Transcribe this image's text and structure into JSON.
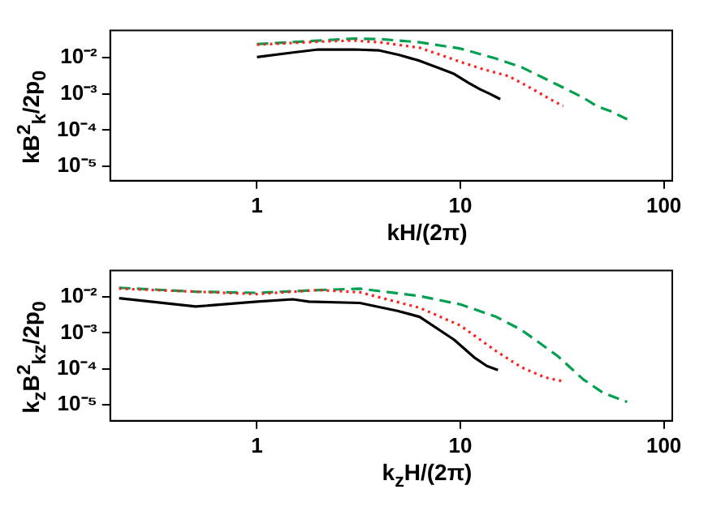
{
  "chart_data": [
    {
      "type": "line",
      "xlabel": "kH/(2π)",
      "ylabel": "kB$^{2}$$_{k}$/2p$_{0}$",
      "log": "xy",
      "grid": false,
      "legend": false,
      "marker": "none",
      "xlim": [
        0.19,
        110
      ],
      "xticks": [
        1,
        10,
        100
      ],
      "ylim": [
        4e-06,
        0.057
      ],
      "yticks": [
        {
          "value": 0.01,
          "label": "10⁻²"
        },
        {
          "value": 0.001,
          "label": "10⁻³"
        },
        {
          "value": 0.0001,
          "label": "10⁻⁴"
        },
        {
          "value": 1e-05,
          "label": "10⁻⁵"
        }
      ],
      "series": [
        {
          "color": "#000000",
          "line_style": "solid",
          "x": [
            1,
            1.5,
            2,
            3,
            4,
            5,
            6.3,
            8,
            9.3,
            11,
            12.5,
            14,
            15.7
          ],
          "values": [
            0.0105,
            0.014,
            0.017,
            0.017,
            0.016,
            0.012,
            0.0083,
            0.005,
            0.0036,
            0.002,
            0.00135,
            0.001,
            0.00072
          ]
        },
        {
          "color": "#ff2020",
          "line_style": "dotted",
          "x": [
            1,
            2,
            3,
            4,
            6.3,
            8,
            10.4,
            13,
            17.3,
            22,
            26.7,
            32
          ],
          "values": [
            0.023,
            0.028,
            0.03,
            0.027,
            0.019,
            0.012,
            0.0072,
            0.0048,
            0.0031,
            0.0015,
            0.0008,
            0.00046
          ]
        },
        {
          "color": "#00a050",
          "line_style": "dashed",
          "x": [
            1,
            2,
            3,
            4,
            6.3,
            10,
            15,
            20,
            30,
            40,
            47,
            55,
            66
          ],
          "values": [
            0.024,
            0.03,
            0.034,
            0.033,
            0.027,
            0.018,
            0.0095,
            0.0055,
            0.0018,
            0.0008,
            0.00046,
            0.00033,
            0.0002
          ]
        }
      ]
    },
    {
      "type": "line",
      "xlabel": "k$_{z}$H/(2π)",
      "ylabel": "k$_{z}$B$^{2}$$_{kz}$/2p$_{0}$",
      "log": "xy",
      "grid": false,
      "legend": false,
      "marker": "none",
      "xlim": [
        0.19,
        110
      ],
      "xticks": [
        1,
        10,
        100
      ],
      "ylim": [
        3.6e-06,
        0.054
      ],
      "yticks": [
        {
          "value": 0.01,
          "label": "10⁻²"
        },
        {
          "value": 0.001,
          "label": "10⁻³"
        },
        {
          "value": 0.0001,
          "label": "10⁻⁴"
        },
        {
          "value": 1e-05,
          "label": "10⁻⁵"
        }
      ],
      "series": [
        {
          "color": "#000000",
          "line_style": "solid",
          "x": [
            0.21,
            0.5,
            1,
            1.5,
            1.8,
            3.2,
            4.9,
            6.3,
            9.3,
            11.8,
            13.5,
            15.3
          ],
          "values": [
            0.0092,
            0.0054,
            0.0074,
            0.0086,
            0.0074,
            0.0068,
            0.0041,
            0.0028,
            0.00065,
            0.0002,
            0.00012,
            9.3e-05
          ]
        },
        {
          "color": "#ff2020",
          "line_style": "dotted",
          "x": [
            0.21,
            0.5,
            1,
            2,
            3.2,
            6.3,
            10,
            15,
            20,
            26,
            32
          ],
          "values": [
            0.017,
            0.014,
            0.012,
            0.0155,
            0.0135,
            0.005,
            0.0016,
            0.00031,
            0.00011,
            5.8e-05,
            4.5e-05
          ]
        },
        {
          "color": "#00a050",
          "line_style": "dashed",
          "x": [
            0.21,
            0.5,
            1,
            2,
            3.2,
            6.3,
            10,
            15,
            20,
            30,
            40,
            50,
            66
          ],
          "values": [
            0.018,
            0.014,
            0.013,
            0.0155,
            0.017,
            0.0106,
            0.0062,
            0.0028,
            0.0012,
            0.00023,
            5.2e-05,
            2.2e-05,
            1.2e-05
          ]
        }
      ]
    }
  ]
}
